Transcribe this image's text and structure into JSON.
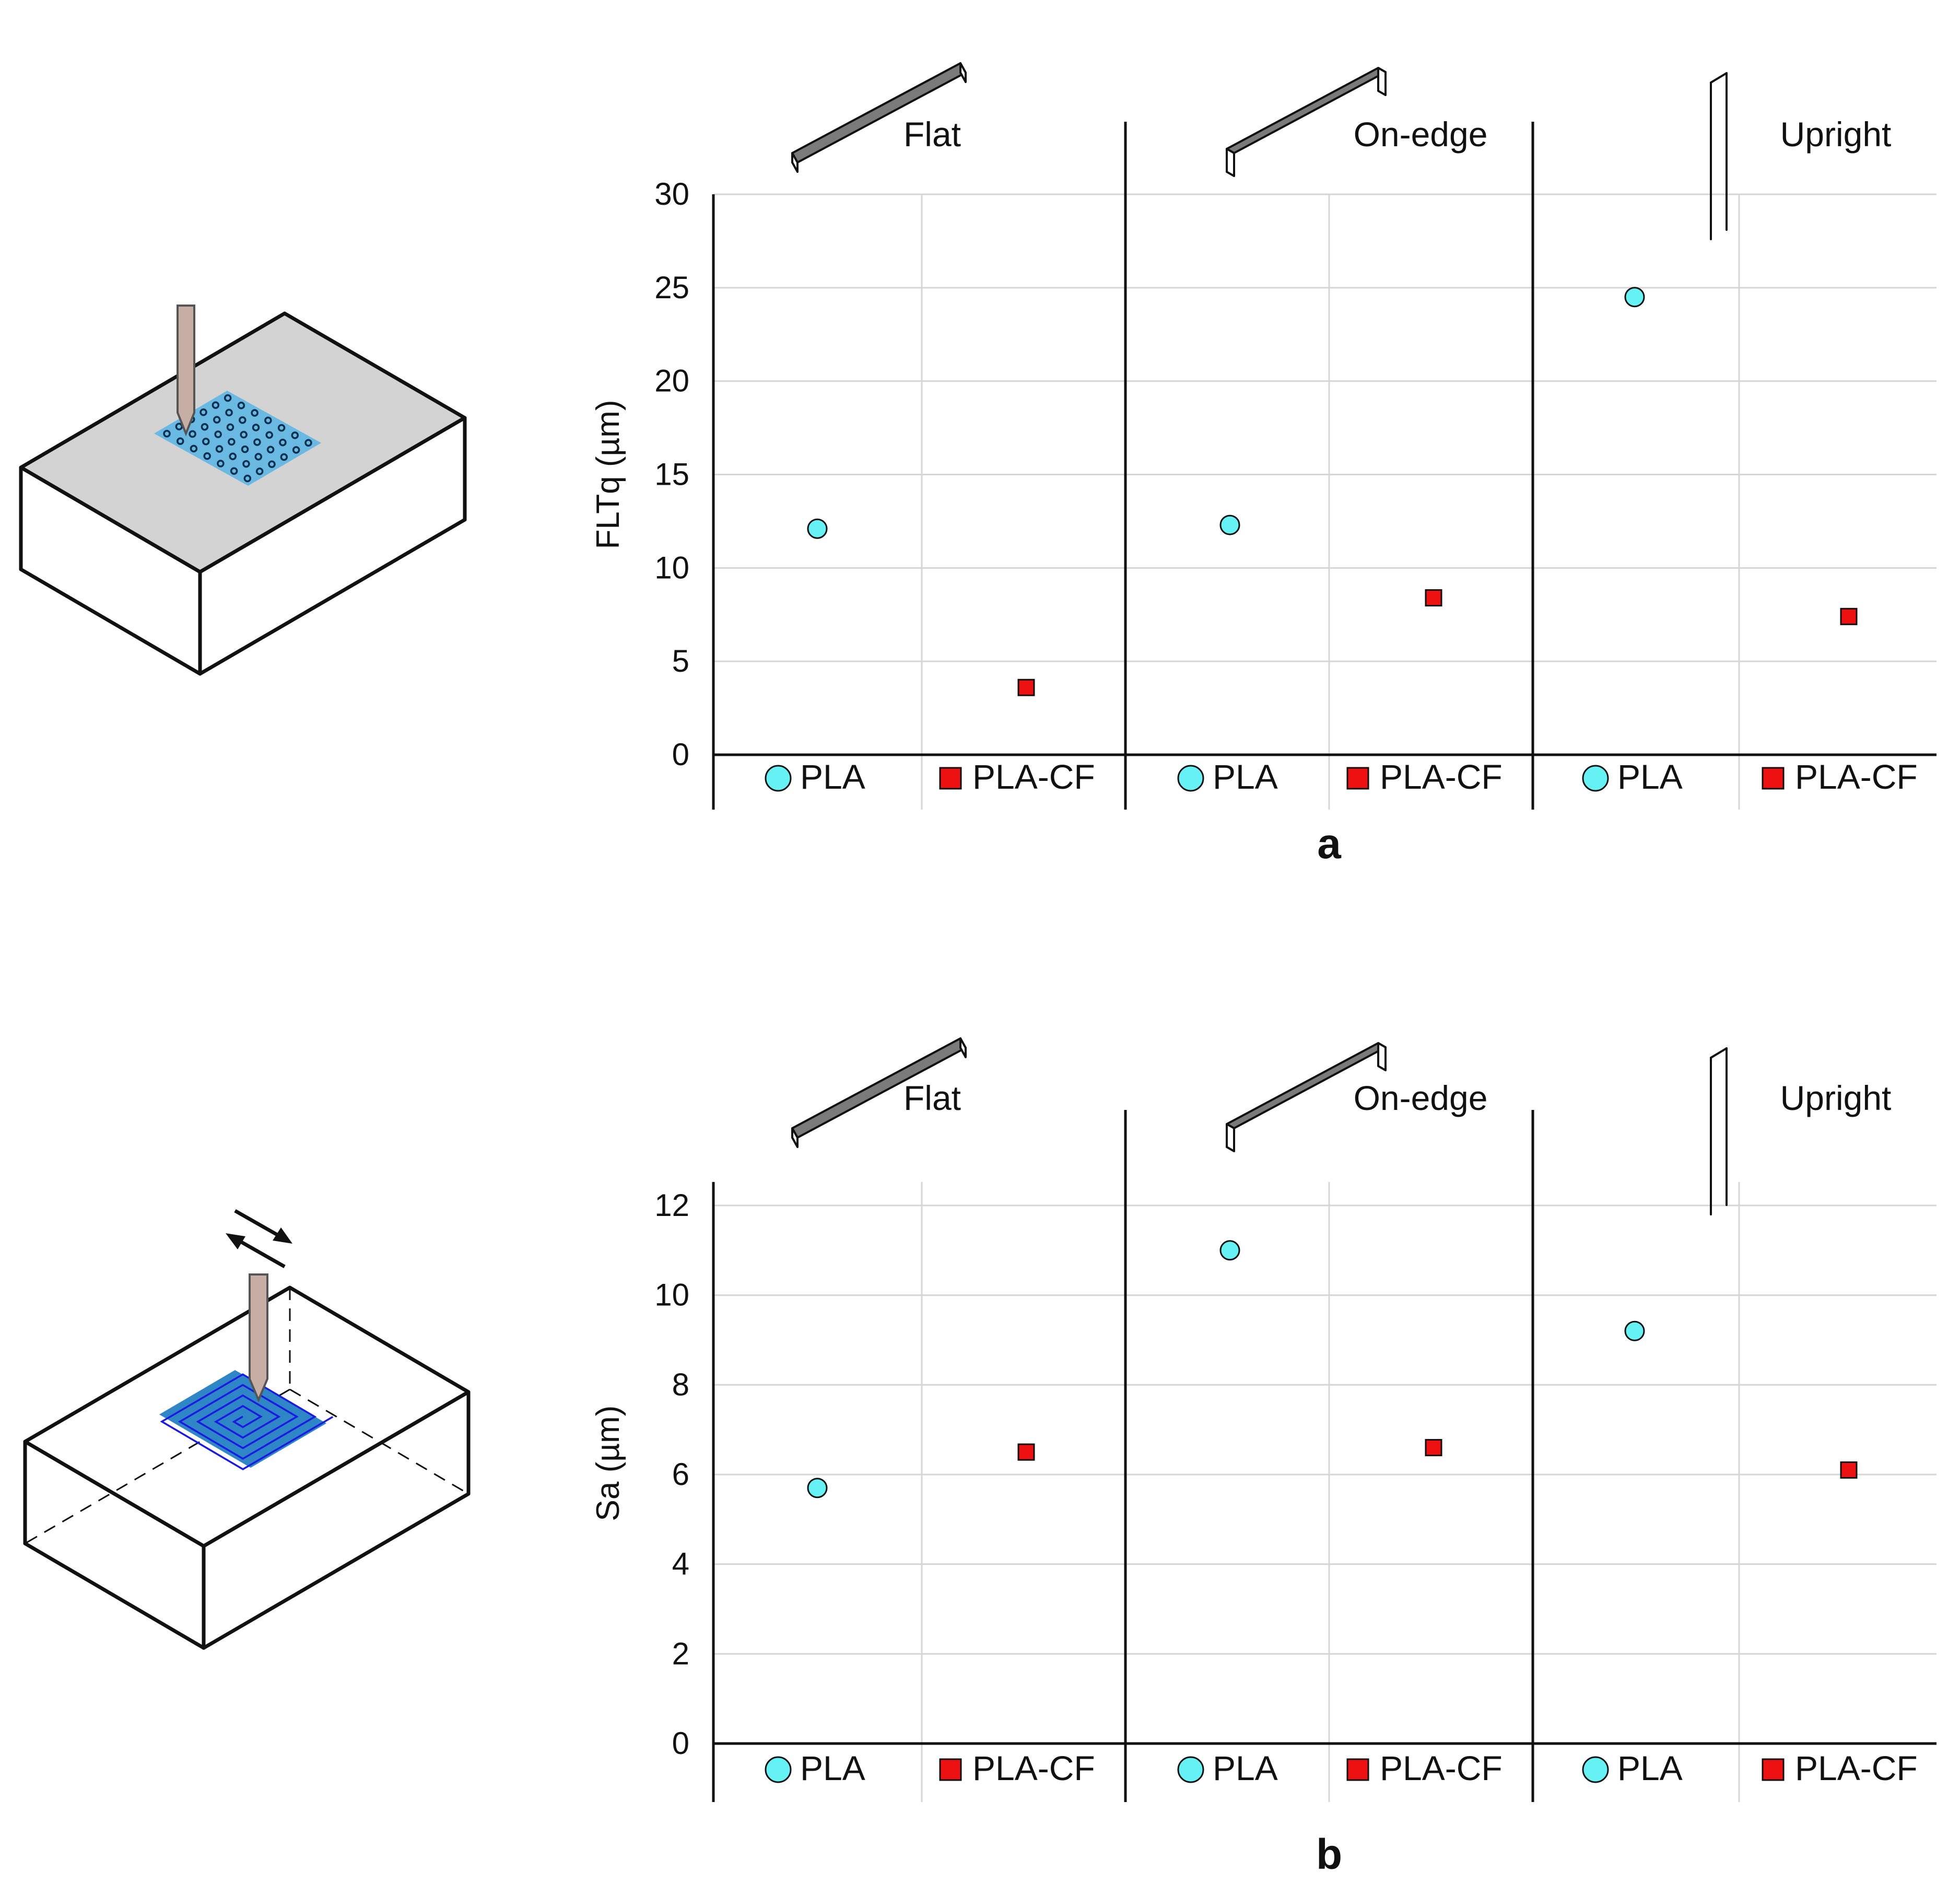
{
  "colors": {
    "pla": "#66f2f5",
    "pla_cf": "#ee1111",
    "grid": "#d6d6d6",
    "axis": "#111111",
    "surface": "#d3d3d3",
    "tool": "#c7aea4",
    "area_light": "#6ab9e3",
    "area_dark": "#2f86c6",
    "path": "#1a1ae0"
  },
  "chart_data": [
    {
      "type": "scatter",
      "panel_label": "a",
      "ylabel": "FLTq (µm)",
      "ylim": [
        0,
        30
      ],
      "yticks": [
        "0",
        "5",
        "10",
        "15",
        "20",
        "25",
        "30"
      ],
      "groups": [
        "Flat",
        "On-edge",
        "Upright"
      ],
      "categories": [
        "PLA",
        "PLA-CF",
        "PLA",
        "PLA-CF",
        "PLA",
        "PLA-CF"
      ],
      "series": [
        {
          "name": "PLA",
          "marker": "circle",
          "values": [
            12.1,
            12.3,
            24.5
          ]
        },
        {
          "name": "PLA-CF",
          "marker": "square",
          "values": [
            3.6,
            8.4,
            7.4
          ]
        }
      ]
    },
    {
      "type": "scatter",
      "panel_label": "b",
      "ylabel": "Sa (µm)",
      "ylim": [
        0,
        12.5
      ],
      "yticks": [
        "0",
        "2",
        "4",
        "6",
        "8",
        "10",
        "12"
      ],
      "groups": [
        "Flat",
        "On-edge",
        "Upright"
      ],
      "categories": [
        "PLA",
        "PLA-CF",
        "PLA",
        "PLA-CF",
        "PLA",
        "PLA-CF"
      ],
      "series": [
        {
          "name": "PLA",
          "marker": "circle",
          "values": [
            5.7,
            11.0,
            9.2
          ]
        },
        {
          "name": "PLA-CF",
          "marker": "square",
          "values": [
            6.5,
            6.6,
            6.1
          ]
        }
      ]
    }
  ]
}
